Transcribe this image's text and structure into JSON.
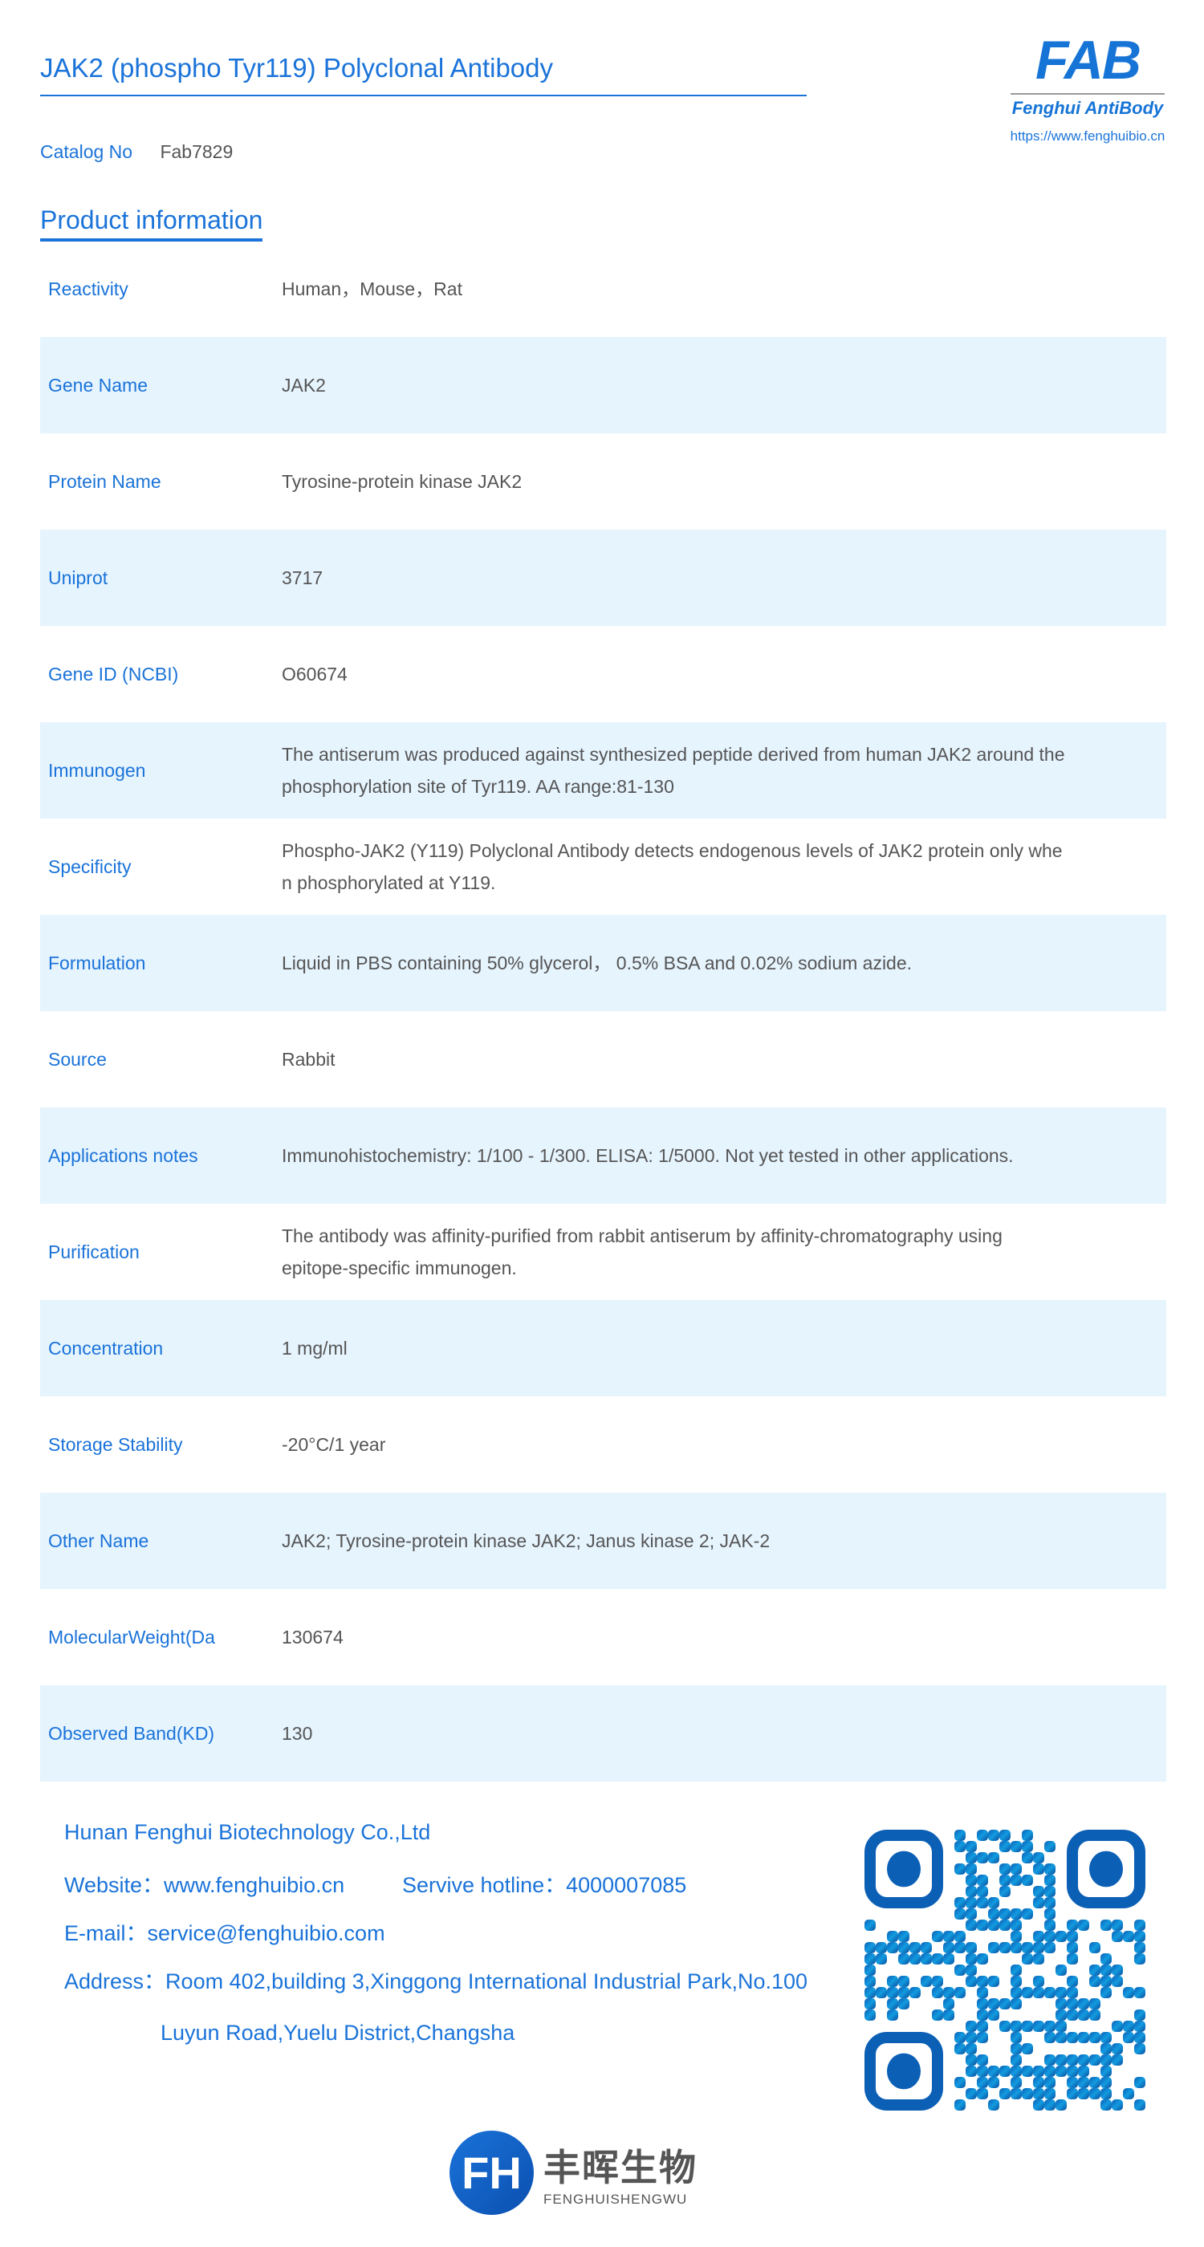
{
  "header": {
    "title": "JAK2 (phospho Tyr119) Polyclonal Antibody",
    "catalog_label": "Catalog No",
    "catalog_value": "Fab7829"
  },
  "logo": {
    "text": "FAB",
    "subtitle": "Fenghui AntiBody",
    "url": "https://www.fenghuibio.cn"
  },
  "section_title": "Product information",
  "rows": [
    {
      "label": "Reactivity",
      "value": [
        "Human，Mouse，Rat"
      ]
    },
    {
      "label": "Gene Name",
      "value": [
        "JAK2"
      ]
    },
    {
      "label": "Protein Name",
      "value": [
        "Tyrosine-protein kinase JAK2"
      ]
    },
    {
      "label": "Uniprot",
      "value": [
        "3717"
      ]
    },
    {
      "label": "Gene ID (NCBI)",
      "value": [
        "O60674"
      ]
    },
    {
      "label": "Immunogen",
      "value": [
        "The antiserum was produced against synthesized peptide derived from human JAK2 around the",
        "phosphorylation site of Tyr119. AA range:81-130"
      ]
    },
    {
      "label": "Specificity",
      "value": [
        "Phospho-JAK2 (Y119) Polyclonal Antibody detects endogenous levels of JAK2 protein only whe",
        "n phosphorylated at Y119."
      ]
    },
    {
      "label": "Formulation",
      "value": [
        "Liquid in PBS containing 50% glycerol， 0.5% BSA and 0.02% sodium azide."
      ]
    },
    {
      "label": "Source",
      "value": [
        "Rabbit"
      ]
    },
    {
      "label": "Applications notes",
      "value": [
        "Immunohistochemistry: 1/100 - 1/300. ELISA: 1/5000. Not yet tested in other applications."
      ]
    },
    {
      "label": "Purification",
      "value": [
        "The antibody was affinity-purified from rabbit antiserum by affinity-chromatography using",
        "epitope-specific immunogen."
      ]
    },
    {
      "label": "Concentration",
      "value": [
        "1 mg/ml"
      ]
    },
    {
      "label": "Storage Stability",
      "value": [
        "-20°C/1 year"
      ]
    },
    {
      "label": "Other Name",
      "value": [
        "JAK2; Tyrosine-protein kinase JAK2; Janus kinase 2; JAK-2"
      ]
    },
    {
      "label": "MolecularWeight(Da",
      "value": [
        "130674"
      ]
    },
    {
      "label": "Observed Band(KD)",
      "value": [
        "130"
      ]
    }
  ],
  "footer": {
    "company": "Hunan Fenghui Biotechnology Co.,Ltd",
    "website": "Website：www.fenghuibio.cn",
    "hotline": "Servive hotline：4000007085",
    "email": "E-mail：service@fenghuibio.com",
    "address1": "Address：Room 402,building 3,Xinggong International Industrial Park,No.100",
    "address2": "Luyun Road,Yuelu District,Changsha"
  },
  "bottom_logo": {
    "cn": "丰晖生物",
    "en": "FENGHUISHENGWU"
  },
  "colors": {
    "accent": "#1a73d9",
    "row_alt": "#e6f4fe",
    "text": "#555555"
  }
}
